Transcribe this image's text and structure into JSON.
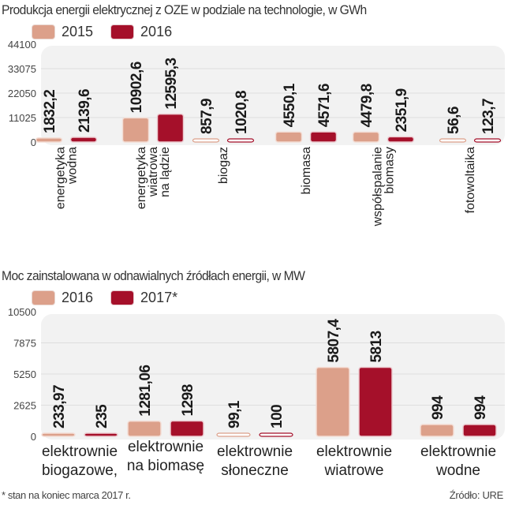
{
  "colors": {
    "a": "#dca08a",
    "b": "#a5102a",
    "plot_bg": "#f2f2f2",
    "grid": "#dedede"
  },
  "chart_data": [
    {
      "type": "bar",
      "title": "Produkcja energii elektrycznej z OZE w podziale na technologie, w GWh",
      "xlabel": "",
      "ylabel": "",
      "ylim": [
        0,
        44100
      ],
      "yticks": [
        "0",
        "11025",
        "22050",
        "33075",
        "44100"
      ],
      "ytick_values": [
        0,
        11025,
        22050,
        33075,
        44100
      ],
      "grid": true,
      "legend": "top-left",
      "categories": [
        [
          "energetyka",
          "wodna"
        ],
        [
          "energetyka",
          "wiatrowa",
          "na lądzie"
        ],
        [
          "biogaz"
        ],
        [
          "biomasa"
        ],
        [
          "współspalanie",
          "biomasy"
        ],
        [
          "fotowoltaika"
        ]
      ],
      "series": [
        {
          "name": "2015",
          "values": [
            1832.2,
            10902.6,
            857.9,
            4550.1,
            4479.8,
            56.6
          ],
          "labels": [
            "1832,2",
            "10902,6",
            "857,9",
            "4550,1",
            "4479,8",
            "56,6"
          ]
        },
        {
          "name": "2016",
          "values": [
            2139.6,
            12595.3,
            1020.8,
            4571.6,
            2351.9,
            123.7
          ],
          "labels": [
            "2139,6",
            "12595,3",
            "1020,8",
            "4571,6",
            "2351,9",
            "123,7"
          ]
        }
      ]
    },
    {
      "type": "bar",
      "title": "Moc zainstalowana w odnawialnych źródłach energii, w MW",
      "xlabel": "",
      "ylabel": "",
      "ylim": [
        0,
        10500
      ],
      "yticks": [
        "0",
        "2625",
        "5250",
        "7875",
        "10500"
      ],
      "ytick_values": [
        0,
        2625,
        5250,
        7875,
        10500
      ],
      "grid": true,
      "legend": "top-left",
      "categories": [
        [
          "elektrownie",
          "biogazowe,"
        ],
        [
          "elektrownie",
          "na biomasę"
        ],
        [
          "elektrownie",
          "słoneczne"
        ],
        [
          "elektrownie",
          "wiatrowe"
        ],
        [
          "elektrownie",
          "wodne"
        ]
      ],
      "series": [
        {
          "name": "2016",
          "values": [
            233.97,
            1281.06,
            99.1,
            5807.4,
            994
          ],
          "labels": [
            "233,97",
            "1281,06",
            "99,1",
            "5807,4",
            "994"
          ]
        },
        {
          "name": "2017*",
          "values": [
            235,
            1298,
            100,
            5813,
            994
          ],
          "labels": [
            "235",
            "1298",
            "100",
            "5813",
            "994"
          ]
        }
      ]
    }
  ],
  "footnote": "* stan na koniec marca 2017 r.",
  "source": "Źródło: URE"
}
